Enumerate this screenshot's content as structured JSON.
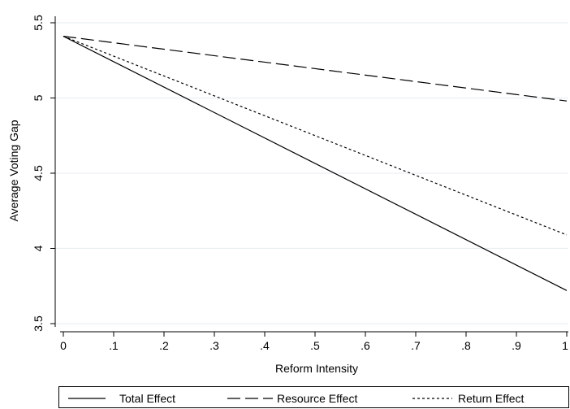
{
  "chart_data": {
    "type": "line",
    "xlabel": "Reform Intensity",
    "ylabel": "Average Voting Gap",
    "xlim": [
      0,
      1
    ],
    "ylim": [
      3.5,
      5.5
    ],
    "x_ticks": [
      0,
      0.1,
      0.2,
      0.3,
      0.4,
      0.5,
      0.6,
      0.7,
      0.8,
      0.9,
      1
    ],
    "x_tick_labels": [
      "0",
      ".1",
      ".2",
      ".3",
      ".4",
      ".5",
      ".6",
      ".7",
      ".8",
      ".9",
      "1"
    ],
    "y_ticks": [
      3.5,
      4,
      4.5,
      5,
      5.5
    ],
    "y_tick_labels": [
      "3.5",
      "4",
      "4.5",
      "5",
      "5.5"
    ],
    "grid": true,
    "legend_position": "bottom",
    "series": [
      {
        "name": "Total Effect",
        "style": "solid",
        "color": "#000000",
        "points": [
          [
            0,
            5.41
          ],
          [
            1,
            3.72
          ]
        ]
      },
      {
        "name": "Resource Effect",
        "style": "long-dash",
        "color": "#000000",
        "points": [
          [
            0,
            5.41
          ],
          [
            1,
            4.98
          ]
        ]
      },
      {
        "name": "Return Effect",
        "style": "short-dash",
        "color": "#000000",
        "points": [
          [
            0,
            5.41
          ],
          [
            1,
            4.09
          ]
        ]
      }
    ]
  }
}
